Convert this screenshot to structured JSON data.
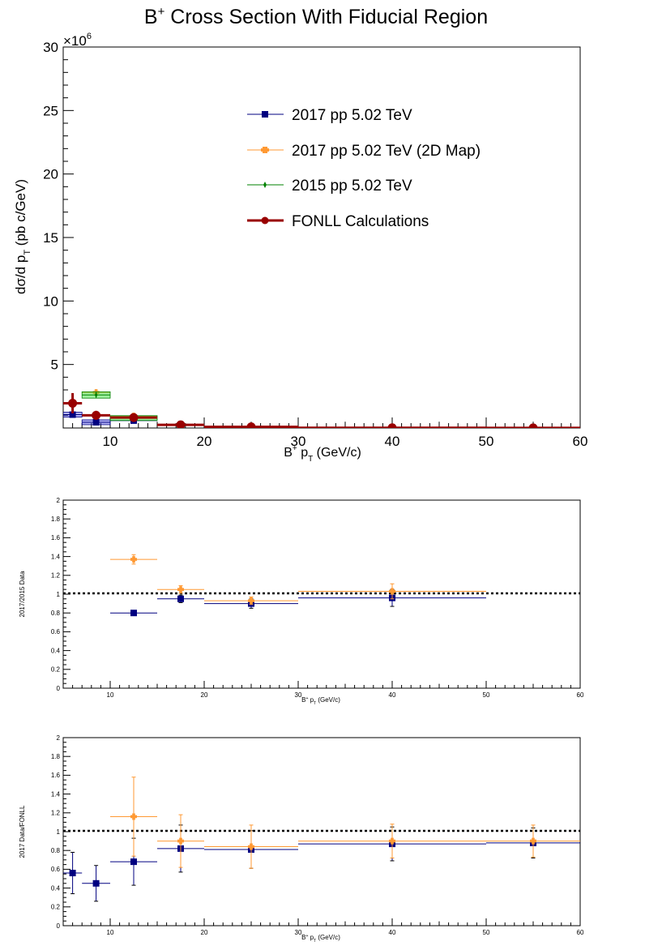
{
  "chart_data": [
    {
      "type": "scatter",
      "title": "B⁺ Cross Section With Fiducial Region",
      "title_main": "B",
      "title_sup": "+",
      "title_rest": " Cross Section With Fiducial Region",
      "xlabel_main": "B",
      "xlabel_sup": "+",
      "xlabel_mid": " p",
      "xlabel_sub": "T",
      "xlabel_rest": " (GeV/c)",
      "ylabel_main": "dσ/d p",
      "ylabel_sub": "T",
      "ylabel_rest": " (pb c/GeV)",
      "y_multiplier": "×10",
      "y_multiplier_exp": "6",
      "xlim": [
        5,
        60
      ],
      "ylim": [
        0,
        30
      ],
      "x_ticks": [
        10,
        20,
        30,
        40,
        50,
        60
      ],
      "y_ticks": [
        5,
        10,
        15,
        20,
        25,
        30
      ],
      "legend_position": "top-right",
      "series": [
        {
          "name": "2017 pp 5.02 TeV",
          "color": "#000080",
          "marker": "square",
          "points": [
            {
              "x": 6.0,
              "xerr": 1.0,
              "y": 1.05,
              "yerr": 0.15,
              "box": true
            },
            {
              "x": 8.5,
              "xerr": 1.5,
              "y": 0.45,
              "yerr": 0.08,
              "box": true
            },
            {
              "x": 12.5,
              "xerr": 2.5,
              "y": 0.58,
              "yerr": 0.08
            },
            {
              "x": 17.5,
              "xerr": 2.5,
              "y": 0.22,
              "yerr": 0.03
            },
            {
              "x": 25.0,
              "xerr": 5.0,
              "y": 0.07,
              "yerr": 0.01
            },
            {
              "x": 40.0,
              "xerr": 10.0,
              "y": 0.012,
              "yerr": 0.002
            }
          ]
        },
        {
          "name": "2017 pp 5.02 TeV (2D Map)",
          "color": "#ff9933",
          "marker": "cross",
          "points": [
            {
              "x": 8.5,
              "xerr": 1.5,
              "y": 2.8,
              "yerr": 0.15
            },
            {
              "x": 12.5,
              "xerr": 2.5,
              "y": 0.95,
              "yerr": 0.05
            },
            {
              "x": 17.5,
              "xerr": 2.5,
              "y": 0.27,
              "yerr": 0.02
            },
            {
              "x": 25.0,
              "xerr": 5.0,
              "y": 0.08,
              "yerr": 0.01
            }
          ]
        },
        {
          "name": "2015 pp 5.02 TeV",
          "color": "#008000",
          "marker": "star",
          "points": [
            {
              "x": 8.5,
              "xerr": 1.5,
              "y": 2.6,
              "yerr": 0.25,
              "box": true
            },
            {
              "x": 12.5,
              "xerr": 2.5,
              "y": 0.78,
              "yerr": 0.1,
              "box": true
            },
            {
              "x": 17.5,
              "xerr": 2.5,
              "y": 0.25,
              "yerr": 0.03
            },
            {
              "x": 25.0,
              "xerr": 5.0,
              "y": 0.085,
              "yerr": 0.01
            },
            {
              "x": 40.0,
              "xerr": 10.0,
              "y": 0.012,
              "yerr": 0.002
            }
          ]
        },
        {
          "name": "FONLL Calculations",
          "color": "#990000",
          "marker": "circle",
          "points": [
            {
              "x": 6.0,
              "xerr": 1.0,
              "y": 1.95,
              "yerr": 0.8
            },
            {
              "x": 8.5,
              "xerr": 1.5,
              "y": 1.0,
              "yerr": 0.35
            },
            {
              "x": 12.5,
              "xerr": 2.5,
              "y": 0.82,
              "yerr": 0.3
            },
            {
              "x": 17.5,
              "xerr": 2.5,
              "y": 0.25,
              "yerr": 0.07
            },
            {
              "x": 25.0,
              "xerr": 5.0,
              "y": 0.085,
              "yerr": 0.02
            },
            {
              "x": 40.0,
              "xerr": 10.0,
              "y": 0.014,
              "yerr": 0.003
            },
            {
              "x": 55.0,
              "xerr": 5.0,
              "y": 0.004,
              "yerr": 0.001
            }
          ]
        }
      ]
    },
    {
      "type": "scatter",
      "xlabel_main": "B",
      "xlabel_sup": "+",
      "xlabel_mid": " p",
      "xlabel_sub": "T",
      "xlabel_rest": " (GeV/c)",
      "ylabel": "2017/2015 Data",
      "xlim": [
        5,
        60
      ],
      "ylim": [
        0,
        2
      ],
      "x_ticks": [
        10,
        20,
        30,
        40,
        50,
        60
      ],
      "y_ticks": [
        "0",
        "0.2",
        "0.4",
        "0.6",
        "0.8",
        "1",
        "1.2",
        "1.4",
        "1.6",
        "1.8",
        "2"
      ],
      "reference_line": 1,
      "series": [
        {
          "color": "#000080",
          "marker": "square",
          "points": [
            {
              "x": 12.5,
              "xerr": 2.5,
              "y": 0.8,
              "yerr": 0.02
            },
            {
              "x": 17.5,
              "xerr": 2.5,
              "y": 0.95,
              "yerr": 0.04
            },
            {
              "x": 25.0,
              "xerr": 5.0,
              "y": 0.9,
              "yerr": 0.05
            },
            {
              "x": 40.0,
              "xerr": 10.0,
              "y": 0.96,
              "yerr": 0.09
            }
          ]
        },
        {
          "color": "#ff9933",
          "marker": "cross",
          "points": [
            {
              "x": 12.5,
              "xerr": 2.5,
              "y": 1.37,
              "yerr": 0.05
            },
            {
              "x": 17.5,
              "xerr": 2.5,
              "y": 1.05,
              "yerr": 0.04
            },
            {
              "x": 25.0,
              "xerr": 5.0,
              "y": 0.93,
              "yerr": 0.04
            },
            {
              "x": 40.0,
              "xerr": 10.0,
              "y": 1.03,
              "yerr": 0.08
            }
          ]
        }
      ]
    },
    {
      "type": "scatter",
      "xlabel_main": "B",
      "xlabel_sup": "+",
      "xlabel_mid": " p",
      "xlabel_sub": "T",
      "xlabel_rest": " (GeV/c)",
      "ylabel": "2017 Data/FONLL",
      "xlim": [
        5,
        60
      ],
      "ylim": [
        0,
        2
      ],
      "x_ticks": [
        10,
        20,
        30,
        40,
        50,
        60
      ],
      "y_ticks": [
        "0",
        "0.2",
        "0.4",
        "0.6",
        "0.8",
        "1",
        "1.2",
        "1.4",
        "1.6",
        "1.8",
        "2"
      ],
      "reference_line": 1,
      "series": [
        {
          "color": "#000080",
          "marker": "square",
          "points": [
            {
              "x": 6.0,
              "xerr": 1.0,
              "y": 0.56,
              "yerr": 0.22
            },
            {
              "x": 8.5,
              "xerr": 1.5,
              "y": 0.45,
              "yerr": 0.19
            },
            {
              "x": 12.5,
              "xerr": 2.5,
              "y": 0.68,
              "yerr": 0.25
            },
            {
              "x": 17.5,
              "xerr": 2.5,
              "y": 0.82,
              "yerr": 0.25
            },
            {
              "x": 25.0,
              "xerr": 5.0,
              "y": 0.81,
              "yerr": 0.2
            },
            {
              "x": 40.0,
              "xerr": 10.0,
              "y": 0.87,
              "yerr": 0.18
            },
            {
              "x": 55.0,
              "xerr": 5.0,
              "y": 0.88,
              "yerr": 0.16
            }
          ]
        },
        {
          "color": "#ff9933",
          "marker": "cross",
          "points": [
            {
              "x": 12.5,
              "xerr": 2.5,
              "y": 1.16,
              "yerr": 0.42
            },
            {
              "x": 17.5,
              "xerr": 2.5,
              "y": 0.9,
              "yerr": 0.28
            },
            {
              "x": 25.0,
              "xerr": 5.0,
              "y": 0.84,
              "yerr": 0.23
            },
            {
              "x": 40.0,
              "xerr": 10.0,
              "y": 0.9,
              "yerr": 0.18
            },
            {
              "x": 55.0,
              "xerr": 5.0,
              "y": 0.9,
              "yerr": 0.17
            }
          ]
        }
      ]
    }
  ]
}
